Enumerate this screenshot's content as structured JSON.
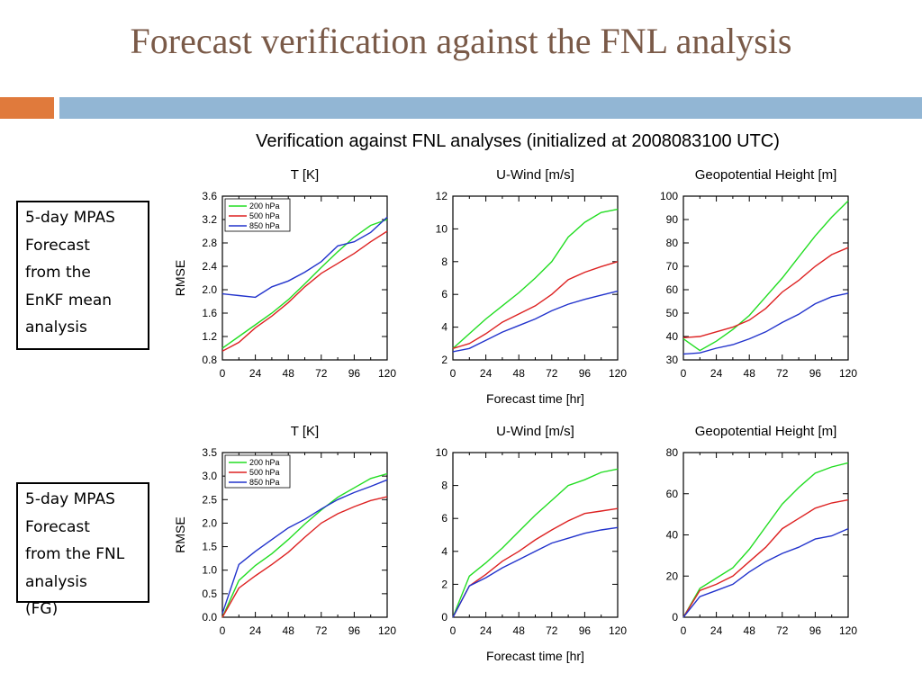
{
  "slide": {
    "title": "Forecast verification against the FNL analysis",
    "figure_title": "Verification against FNL analyses (initialized at 2008083100 UTC)",
    "accent_color": "#e07a3c",
    "bar_color": "#92b6d4"
  },
  "labels": {
    "top": [
      "5-day MPAS",
      "Forecast",
      "from the",
      "EnKF mean",
      "analysis"
    ],
    "bottom": [
      "5-day MPAS",
      "Forecast",
      "from the FNL",
      "analysis",
      "(FG)"
    ]
  },
  "series_colors": [
    "#22dd22",
    "#dd2222",
    "#2233cc"
  ],
  "chart_data": [
    {
      "type": "line",
      "title": "T [K]",
      "ylabel": "RMSE",
      "xlabel": "",
      "xlim": [
        0,
        120
      ],
      "ylim": [
        0.8,
        3.6
      ],
      "xticks": [
        0,
        24,
        48,
        72,
        96,
        120
      ],
      "yticks": [
        "0.8",
        "1.2",
        "1.6",
        "2.0",
        "2.4",
        "2.8",
        "3.2",
        "3.6"
      ],
      "legend": "top-left",
      "grid": false,
      "x": [
        0,
        12,
        24,
        36,
        48,
        60,
        72,
        84,
        96,
        108,
        120
      ],
      "series": [
        {
          "name": "200 hPa",
          "values": [
            1.0,
            1.2,
            1.4,
            1.6,
            1.83,
            2.1,
            2.38,
            2.65,
            2.9,
            3.1,
            3.2
          ]
        },
        {
          "name": "500 hPa",
          "values": [
            0.95,
            1.1,
            1.35,
            1.55,
            1.78,
            2.05,
            2.28,
            2.45,
            2.62,
            2.82,
            3.0
          ]
        },
        {
          "name": "850 hPa",
          "values": [
            1.93,
            1.9,
            1.87,
            2.05,
            2.15,
            2.3,
            2.48,
            2.75,
            2.82,
            2.98,
            3.24
          ]
        }
      ]
    },
    {
      "type": "line",
      "title": "U-Wind [m/s]",
      "ylabel": "",
      "xlabel": "Forecast time [hr]",
      "xlim": [
        0,
        120
      ],
      "ylim": [
        2,
        12
      ],
      "xticks": [
        0,
        24,
        48,
        72,
        96,
        120
      ],
      "yticks": [
        "2",
        "4",
        "6",
        "8",
        "10",
        "12"
      ],
      "legend": "none",
      "grid": false,
      "x": [
        0,
        12,
        24,
        36,
        48,
        60,
        72,
        84,
        96,
        108,
        120
      ],
      "series": [
        {
          "name": "",
          "values": [
            2.7,
            3.6,
            4.5,
            5.3,
            6.1,
            7.0,
            8.0,
            9.5,
            10.4,
            11.0,
            11.2
          ]
        },
        {
          "name": "",
          "values": [
            2.7,
            3.0,
            3.6,
            4.3,
            4.8,
            5.3,
            6.0,
            6.9,
            7.35,
            7.7,
            8.0
          ]
        },
        {
          "name": "",
          "values": [
            2.5,
            2.7,
            3.2,
            3.7,
            4.1,
            4.5,
            5.0,
            5.4,
            5.7,
            5.95,
            6.2
          ]
        }
      ]
    },
    {
      "type": "line",
      "title": "Geopotential Height [m]",
      "ylabel": "",
      "xlabel": "",
      "xlim": [
        0,
        120
      ],
      "ylim": [
        30,
        100
      ],
      "xticks": [
        0,
        24,
        48,
        72,
        96,
        120
      ],
      "yticks": [
        "30",
        "40",
        "50",
        "60",
        "70",
        "80",
        "90",
        "100"
      ],
      "legend": "none",
      "grid": false,
      "x": [
        0,
        12,
        24,
        36,
        48,
        60,
        72,
        84,
        96,
        108,
        120
      ],
      "series": [
        {
          "name": "",
          "values": [
            39,
            34,
            38,
            43,
            49,
            57,
            65,
            74,
            83,
            91,
            98
          ]
        },
        {
          "name": "",
          "values": [
            39.5,
            40,
            42,
            44,
            47,
            52,
            59,
            64,
            70,
            75,
            78
          ]
        },
        {
          "name": "",
          "values": [
            32.5,
            33,
            35,
            36.5,
            39,
            42,
            46,
            49.5,
            54,
            57,
            58.5
          ]
        }
      ]
    },
    {
      "type": "line",
      "title": "T [K]",
      "ylabel": "RMSE",
      "xlabel": "",
      "xlim": [
        0,
        120
      ],
      "ylim": [
        0,
        3.5
      ],
      "xticks": [
        0,
        24,
        48,
        72,
        96,
        120
      ],
      "yticks": [
        "0.0",
        "0.5",
        "1.0",
        "1.5",
        "2.0",
        "2.5",
        "3.0",
        "3.5"
      ],
      "legend": "top-left",
      "grid": false,
      "x": [
        0,
        12,
        24,
        36,
        48,
        60,
        72,
        84,
        96,
        108,
        120
      ],
      "series": [
        {
          "name": "200 hPa",
          "values": [
            0.0,
            0.78,
            1.1,
            1.35,
            1.65,
            1.98,
            2.28,
            2.55,
            2.75,
            2.95,
            3.05
          ]
        },
        {
          "name": "500 hPa",
          "values": [
            0.0,
            0.62,
            0.88,
            1.12,
            1.38,
            1.7,
            2.0,
            2.2,
            2.35,
            2.48,
            2.56
          ]
        },
        {
          "name": "850 hPa",
          "values": [
            0.08,
            1.12,
            1.4,
            1.65,
            1.9,
            2.08,
            2.3,
            2.5,
            2.65,
            2.78,
            2.92
          ]
        }
      ]
    },
    {
      "type": "line",
      "title": "U-Wind [m/s]",
      "ylabel": "",
      "xlabel": "Forecast time [hr]",
      "xlim": [
        0,
        120
      ],
      "ylim": [
        0,
        10
      ],
      "xticks": [
        0,
        24,
        48,
        72,
        96,
        120
      ],
      "yticks": [
        "0",
        "2",
        "4",
        "6",
        "8",
        "10"
      ],
      "legend": "none",
      "grid": false,
      "x": [
        0,
        12,
        24,
        36,
        48,
        60,
        72,
        84,
        96,
        108,
        120
      ],
      "series": [
        {
          "name": "",
          "values": [
            0.0,
            2.5,
            3.3,
            4.2,
            5.2,
            6.2,
            7.1,
            8.0,
            8.35,
            8.8,
            9.0
          ]
        },
        {
          "name": "",
          "values": [
            0.0,
            1.9,
            2.6,
            3.4,
            4.0,
            4.7,
            5.3,
            5.85,
            6.3,
            6.45,
            6.6
          ]
        },
        {
          "name": "",
          "values": [
            0.0,
            1.9,
            2.4,
            3.0,
            3.5,
            4.0,
            4.5,
            4.8,
            5.1,
            5.3,
            5.45
          ]
        }
      ]
    },
    {
      "type": "line",
      "title": "Geopotential Height [m]",
      "ylabel": "",
      "xlabel": "",
      "xlim": [
        0,
        120
      ],
      "ylim": [
        0,
        80
      ],
      "xticks": [
        0,
        24,
        48,
        72,
        96,
        120
      ],
      "yticks": [
        "0",
        "20",
        "40",
        "60",
        "80"
      ],
      "legend": "none",
      "grid": false,
      "x": [
        0,
        12,
        24,
        36,
        48,
        60,
        72,
        84,
        96,
        108,
        120
      ],
      "series": [
        {
          "name": "",
          "values": [
            0,
            14,
            19,
            24,
            33,
            44,
            55,
            63,
            70,
            73,
            75
          ]
        },
        {
          "name": "",
          "values": [
            0,
            13,
            16,
            20,
            27,
            34,
            43,
            48,
            53,
            55.5,
            57
          ]
        },
        {
          "name": "",
          "values": [
            0,
            10,
            13,
            16,
            22,
            27,
            31,
            34,
            38,
            39.5,
            43
          ]
        }
      ]
    }
  ]
}
